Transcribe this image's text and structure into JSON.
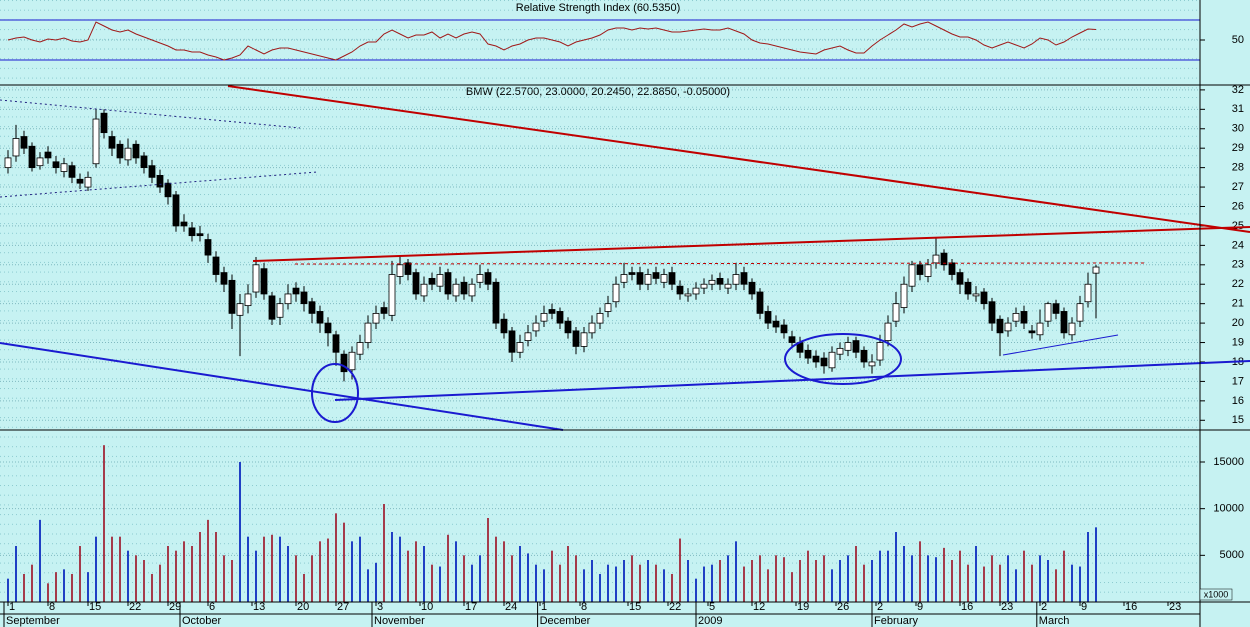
{
  "chart_data": [
    {
      "type": "line",
      "title": "Relative Strength Index (60.5350)",
      "color": "#a01818",
      "level_color": "#1a1ad0",
      "values": [
        50,
        52,
        53,
        50,
        48,
        51,
        50,
        52,
        49,
        48,
        50,
        68,
        64,
        60,
        58,
        60,
        56,
        53,
        50,
        47,
        44,
        40,
        40,
        38,
        38,
        35,
        33,
        30,
        32,
        35,
        44,
        40,
        36,
        40,
        42,
        42,
        40,
        38,
        36,
        34,
        32,
        30,
        34,
        38,
        44,
        48,
        48,
        56,
        60,
        56,
        52,
        55,
        55,
        58,
        52,
        56,
        52,
        56,
        58,
        56,
        46,
        44,
        40,
        44,
        46,
        50,
        52,
        52,
        50,
        48,
        44,
        48,
        50,
        52,
        55,
        60,
        62,
        62,
        60,
        62,
        61,
        62,
        60,
        58,
        58,
        59,
        60,
        61,
        60,
        60,
        62,
        59,
        56,
        50,
        47,
        46,
        44,
        42,
        40,
        38,
        37,
        36,
        40,
        42,
        44,
        40,
        37,
        37,
        44,
        50,
        55,
        60,
        66,
        63,
        66,
        68,
        64,
        60,
        56,
        53,
        53,
        50,
        45,
        42,
        45,
        48,
        45,
        42,
        46,
        52,
        50,
        45,
        48,
        53,
        57,
        61,
        60.535
      ],
      "ylim": [
        5,
        90
      ],
      "yticks": [
        50
      ],
      "levels": [
        70,
        30
      ]
    },
    {
      "type": "candlestick",
      "title": "BMW (22.5700, 23.0000, 20.2450, 22.8850, -0.05000)",
      "up_color": "#ffffff",
      "down_color": "#000000",
      "open": [
        28.0,
        28.6,
        29.6,
        29.1,
        28.1,
        28.8,
        28.3,
        27.8,
        28.1,
        27.4,
        27.0,
        28.2,
        30.8,
        29.6,
        29.2,
        28.4,
        29.2,
        28.6,
        28.1,
        27.6,
        27.2,
        26.6,
        25.2,
        24.9,
        24.6,
        24.3,
        23.4,
        22.6,
        22.2,
        20.4,
        20.9,
        21.6,
        22.8,
        21.4,
        20.3,
        21.0,
        21.8,
        21.6,
        21.1,
        20.6,
        20.0,
        19.4,
        18.4,
        17.6,
        18.4,
        19.0,
        20.0,
        20.8,
        20.4,
        22.4,
        23.1,
        22.6,
        21.4,
        22.3,
        21.9,
        22.6,
        21.4,
        22.1,
        21.4,
        22.1,
        22.6,
        22.1,
        20.2,
        19.6,
        18.5,
        19.1,
        19.6,
        20.1,
        20.7,
        20.6,
        20.1,
        19.6,
        18.8,
        19.5,
        20.0,
        20.6,
        21.1,
        22.1,
        22.6,
        22.6,
        22.0,
        22.6,
        22.1,
        22.6,
        21.9,
        21.4,
        21.5,
        21.8,
        22.0,
        22.3,
        21.8,
        22.0,
        22.6,
        22.1,
        21.6,
        20.6,
        20.1,
        19.9,
        19.3,
        19.0,
        18.6,
        18.3,
        18.2,
        17.7,
        18.4,
        18.6,
        19.1,
        18.6,
        17.8,
        18.1,
        19.1,
        20.1,
        20.8,
        21.9,
        23.0,
        22.4,
        23.1,
        23.6,
        23.1,
        22.6,
        22.1,
        21.4,
        21.6,
        21.1,
        20.2,
        19.6,
        20.1,
        20.6,
        19.6,
        19.4,
        20.1,
        21.0,
        20.6,
        19.4,
        20.1,
        21.1,
        22.57
      ],
      "high": [
        28.9,
        30.2,
        29.9,
        29.3,
        28.8,
        29.1,
        28.6,
        28.5,
        28.3,
        27.7,
        27.8,
        31.0,
        31.0,
        29.9,
        29.4,
        29.5,
        29.4,
        28.8,
        28.4,
        27.9,
        27.4,
        26.8,
        25.6,
        25.2,
        25.0,
        24.6,
        23.7,
        22.9,
        22.5,
        21.5,
        22.0,
        23.4,
        23.1,
        21.6,
        21.3,
        22.0,
        22.1,
        21.9,
        21.3,
        20.9,
        20.3,
        19.6,
        18.6,
        18.8,
        19.4,
        20.4,
        20.9,
        21.1,
        23.2,
        23.5,
        23.3,
        22.8,
        22.4,
        22.6,
        22.9,
        22.8,
        22.3,
        22.4,
        22.3,
        23.0,
        22.8,
        22.3,
        20.5,
        19.8,
        19.4,
        19.9,
        20.4,
        20.9,
        21.0,
        20.8,
        20.3,
        19.8,
        19.8,
        20.4,
        20.8,
        21.4,
        22.4,
        23.1,
        22.9,
        22.9,
        22.8,
        22.9,
        22.8,
        22.9,
        22.2,
        21.8,
        22.1,
        22.3,
        22.5,
        22.6,
        22.3,
        23.1,
        22.9,
        22.3,
        21.8,
        20.9,
        20.4,
        20.2,
        19.6,
        19.3,
        18.9,
        18.6,
        18.5,
        18.8,
        19.0,
        19.3,
        19.3,
        18.8,
        18.4,
        19.4,
        20.4,
        21.6,
        22.4,
        23.2,
        23.2,
        23.3,
        24.4,
        23.8,
        23.3,
        22.8,
        22.3,
        21.9,
        21.8,
        21.3,
        20.4,
        20.3,
        20.8,
        20.9,
        19.9,
        20.7,
        21.1,
        21.2,
        20.8,
        20.3,
        21.4,
        22.6,
        23.0
      ],
      "low": [
        27.7,
        28.3,
        28.7,
        27.8,
        27.9,
        28.2,
        27.7,
        27.5,
        27.2,
        26.9,
        26.8,
        28.0,
        29.5,
        28.6,
        28.2,
        28.1,
        28.2,
        27.7,
        27.2,
        26.7,
        26.1,
        24.7,
        24.7,
        24.2,
        24.2,
        23.1,
        22.1,
        21.6,
        19.7,
        18.3,
        20.5,
        21.3,
        21.2,
        19.9,
        19.9,
        20.7,
        21.1,
        20.6,
        20.0,
        19.5,
        18.8,
        17.8,
        17.0,
        17.1,
        18.1,
        18.7,
        19.7,
        20.2,
        20.1,
        22.0,
        22.2,
        21.2,
        21.1,
        21.7,
        21.6,
        21.2,
        21.1,
        21.2,
        21.1,
        21.8,
        21.7,
        19.7,
        19.2,
        18.0,
        18.2,
        18.8,
        19.3,
        19.8,
        20.2,
        19.7,
        19.2,
        18.4,
        18.5,
        19.2,
        19.7,
        20.3,
        20.8,
        21.8,
        22.2,
        21.7,
        21.7,
        22.0,
        21.8,
        21.7,
        21.2,
        21.1,
        21.2,
        21.5,
        21.7,
        21.7,
        21.5,
        21.7,
        21.7,
        21.2,
        20.2,
        19.7,
        19.5,
        19.2,
        18.7,
        18.2,
        17.9,
        17.7,
        17.4,
        17.5,
        18.1,
        18.3,
        18.2,
        17.7,
        17.4,
        17.8,
        18.8,
        19.8,
        20.5,
        21.6,
        22.2,
        22.1,
        22.8,
        22.7,
        22.2,
        21.5,
        21.2,
        21.1,
        20.7,
        19.6,
        18.3,
        19.3,
        19.8,
        19.7,
        19.2,
        19.1,
        19.8,
        20.2,
        19.2,
        19.1,
        19.8,
        20.8,
        20.245
      ],
      "close": [
        28.5,
        29.5,
        29,
        28,
        28.5,
        28.5,
        28,
        28.2,
        27.5,
        27.2,
        27.5,
        30.5,
        29.8,
        29,
        28.5,
        29,
        28.5,
        28,
        27.5,
        27,
        26.5,
        25,
        25,
        24.5,
        24.5,
        23.5,
        22.5,
        22,
        20.5,
        21,
        21.5,
        23,
        21.5,
        20.2,
        21,
        21.5,
        21.5,
        21,
        20.5,
        20,
        19.5,
        18.5,
        17.5,
        18.5,
        19,
        20,
        20.5,
        20.5,
        22.5,
        23,
        22.5,
        21.5,
        22,
        22,
        22.5,
        21.5,
        22,
        21.5,
        22,
        22.5,
        22,
        20,
        19.5,
        18.5,
        19,
        19.5,
        20,
        20.5,
        20.5,
        20,
        19.5,
        18.8,
        19.5,
        20,
        20.5,
        21,
        22,
        22.5,
        22.5,
        22,
        22.5,
        22.3,
        22.5,
        22,
        21.5,
        21.5,
        21.8,
        22,
        22.2,
        22,
        22,
        22.5,
        22,
        21.5,
        20.5,
        20,
        19.8,
        19.5,
        19,
        18.5,
        18.2,
        18,
        17.8,
        18.5,
        18.7,
        19,
        18.5,
        18,
        18,
        19,
        20,
        21,
        22,
        23,
        22.5,
        23,
        23.5,
        23,
        22.5,
        22,
        21.5,
        21.5,
        21,
        20,
        19.5,
        20,
        20.5,
        20,
        19.5,
        20,
        21,
        20.5,
        19.5,
        20,
        21,
        22,
        22.885
      ],
      "ylim": [
        14.5,
        32.2
      ],
      "yticks": [
        15,
        16,
        17,
        18,
        19,
        20,
        21,
        22,
        23,
        24,
        25,
        26,
        27,
        28,
        29,
        30,
        31,
        32
      ],
      "xlim": [
        -1,
        155
      ],
      "xticks": [
        {
          "value": 0,
          "label": "1"
        },
        {
          "value": 5,
          "label": "8"
        },
        {
          "value": 10,
          "label": "15"
        },
        {
          "value": 15,
          "label": "22"
        },
        {
          "value": 20,
          "label": "29"
        },
        {
          "value": 25,
          "label": "6"
        },
        {
          "value": 30.5,
          "label": "13"
        },
        {
          "value": 36,
          "label": "20"
        },
        {
          "value": 41,
          "label": "27"
        },
        {
          "value": 46,
          "label": "3"
        },
        {
          "value": 51.5,
          "label": "10"
        },
        {
          "value": 57,
          "label": "17"
        },
        {
          "value": 62,
          "label": "24"
        },
        {
          "value": 66.5,
          "label": "1"
        },
        {
          "value": 71.5,
          "label": "8"
        },
        {
          "value": 77.5,
          "label": "15"
        },
        {
          "value": 82.5,
          "label": "22"
        },
        {
          "value": 87.5,
          "label": "5"
        },
        {
          "value": 93,
          "label": "12"
        },
        {
          "value": 98.5,
          "label": "19"
        },
        {
          "value": 103.5,
          "label": "26"
        },
        {
          "value": 108.5,
          "label": "2"
        },
        {
          "value": 113.5,
          "label": "9"
        },
        {
          "value": 119,
          "label": "16"
        },
        {
          "value": 124,
          "label": "23"
        },
        {
          "value": 129,
          "label": "2"
        },
        {
          "value": 134,
          "label": "9"
        },
        {
          "value": 139.5,
          "label": "16"
        },
        {
          "value": 145,
          "label": "23"
        }
      ],
      "months": [
        {
          "value": -0.5,
          "label": "September"
        },
        {
          "value": 21.5,
          "label": "October"
        },
        {
          "value": 45.5,
          "label": "November"
        },
        {
          "value": 66.2,
          "label": "December"
        },
        {
          "value": 86,
          "label": "2009"
        },
        {
          "value": 108,
          "label": "February"
        },
        {
          "value": 128.6,
          "label": "March"
        }
      ]
    },
    {
      "type": "bar",
      "unit_label": "x1000",
      "up_color": "#1f3fc4",
      "down_color": "#a43a4a",
      "values": [
        2500,
        6000,
        3000,
        4000,
        8800,
        2000,
        3200,
        3500,
        3000,
        6000,
        3200,
        7000,
        16800,
        7000,
        7000,
        5500,
        5000,
        4500,
        3000,
        4000,
        6000,
        5500,
        6500,
        6000,
        7500,
        8800,
        7500,
        5000,
        4500,
        15000,
        7000,
        5500,
        7000,
        7200,
        7000,
        6000,
        5000,
        3000,
        5000,
        6500,
        6800,
        9500,
        8500,
        6500,
        7000,
        3500,
        4200,
        10500,
        7500,
        7000,
        5500,
        6500,
        6000,
        4000,
        3800,
        7200,
        6500,
        5000,
        4000,
        5000,
        9000,
        7000,
        6500,
        5000,
        6000,
        5200,
        4000,
        3500,
        5500,
        4000,
        6000,
        5000,
        3500,
        4500,
        3000,
        4000,
        3800,
        4500,
        5000,
        4000,
        4500,
        4000,
        3500,
        3000,
        6800,
        4500,
        2500,
        3800,
        4000,
        4500,
        5000,
        6500,
        3800,
        4500,
        5000,
        3500,
        5000,
        4800,
        3200,
        4500,
        5500,
        4500,
        5000,
        3500,
        4500,
        5000,
        6000,
        4000,
        4500,
        5500,
        5500,
        7500,
        6000,
        5000,
        6500,
        5000,
        4800,
        5800,
        4500,
        5500,
        4000,
        6000,
        3800,
        5000,
        4000,
        5000,
        3500,
        5500,
        4000,
        5000,
        4500,
        3500,
        5500,
        4000,
        3800,
        7500,
        8000
      ],
      "ylim": [
        0,
        18000
      ],
      "yticks": [
        5000,
        10000,
        15000
      ]
    }
  ]
}
